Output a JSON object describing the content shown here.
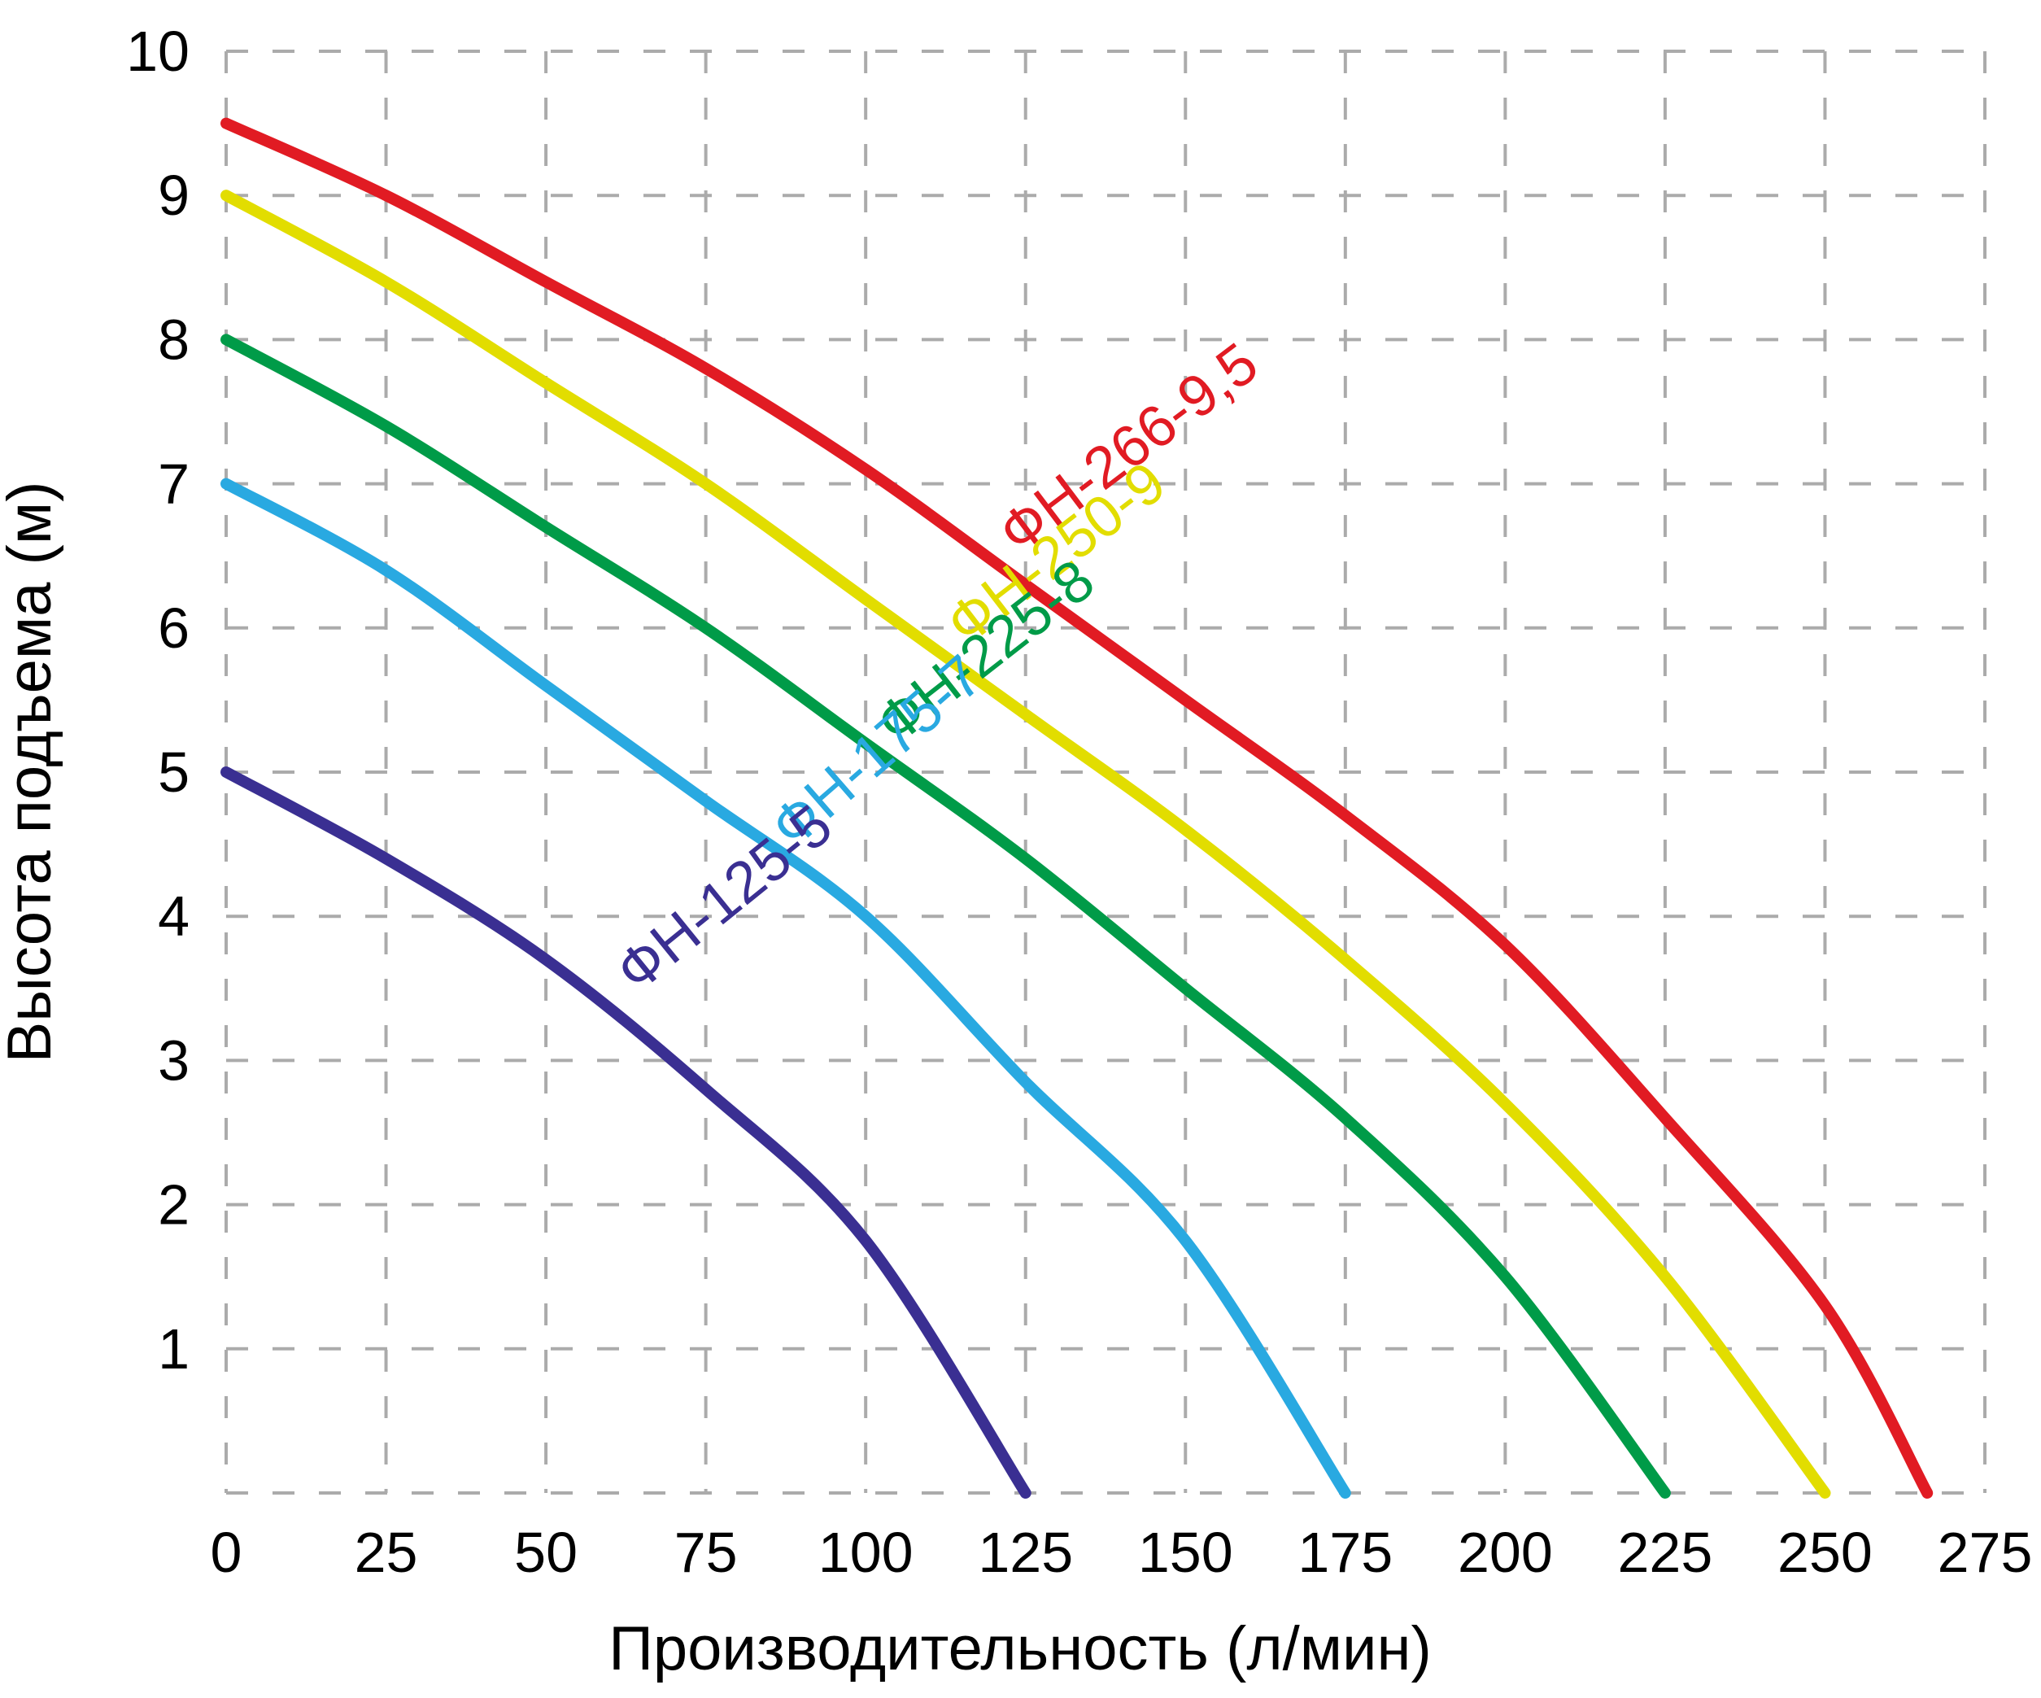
{
  "chart_data": {
    "type": "line",
    "xlabel": "Производительность (л/мин)",
    "ylabel": "Высота подъема (м)",
    "xlim": [
      0,
      275
    ],
    "ylim": [
      0,
      10
    ],
    "x_ticks": [
      0,
      25,
      50,
      75,
      100,
      125,
      150,
      175,
      200,
      225,
      250,
      275
    ],
    "y_ticks": [
      1,
      2,
      3,
      4,
      5,
      6,
      7,
      8,
      9,
      10
    ],
    "grid": "dashed",
    "grid_color": "#ababab",
    "text_color": "#000000",
    "legend_position": "labels-on-curves",
    "series": [
      {
        "name": "ФН-266-9,5",
        "color": "#e11b23",
        "points": [
          [
            0,
            9.5
          ],
          [
            25,
            9.0
          ],
          [
            50,
            8.4
          ],
          [
            75,
            7.8
          ],
          [
            100,
            7.1
          ],
          [
            125,
            6.3
          ],
          [
            150,
            5.5
          ],
          [
            175,
            4.7
          ],
          [
            200,
            3.8
          ],
          [
            225,
            2.6
          ],
          [
            250,
            1.3
          ],
          [
            266,
            0
          ]
        ]
      },
      {
        "name": "ФН-250-9",
        "color": "#e2dd00",
        "points": [
          [
            0,
            9.0
          ],
          [
            25,
            8.4
          ],
          [
            50,
            7.7
          ],
          [
            75,
            7.0
          ],
          [
            100,
            6.2
          ],
          [
            125,
            5.4
          ],
          [
            150,
            4.6
          ],
          [
            175,
            3.7
          ],
          [
            200,
            2.7
          ],
          [
            225,
            1.5
          ],
          [
            250,
            0
          ]
        ]
      },
      {
        "name": "ФН-225-8",
        "color": "#009b48",
        "points": [
          [
            0,
            8.0
          ],
          [
            25,
            7.4
          ],
          [
            50,
            6.7
          ],
          [
            75,
            6.0
          ],
          [
            100,
            5.2
          ],
          [
            125,
            4.4
          ],
          [
            150,
            3.5
          ],
          [
            175,
            2.6
          ],
          [
            200,
            1.5
          ],
          [
            225,
            0
          ]
        ]
      },
      {
        "name": "ФН-175-7",
        "color": "#29a9e1",
        "points": [
          [
            0,
            7.0
          ],
          [
            25,
            6.4
          ],
          [
            50,
            5.6
          ],
          [
            75,
            4.8
          ],
          [
            100,
            4.0
          ],
          [
            125,
            2.85
          ],
          [
            150,
            1.75
          ],
          [
            175,
            0
          ]
        ]
      },
      {
        "name": "ФН-125-5",
        "color": "#3a2f92",
        "points": [
          [
            0,
            5.0
          ],
          [
            25,
            4.4
          ],
          [
            50,
            3.7
          ],
          [
            75,
            2.8
          ],
          [
            100,
            1.75
          ],
          [
            125,
            0
          ]
        ]
      }
    ]
  }
}
